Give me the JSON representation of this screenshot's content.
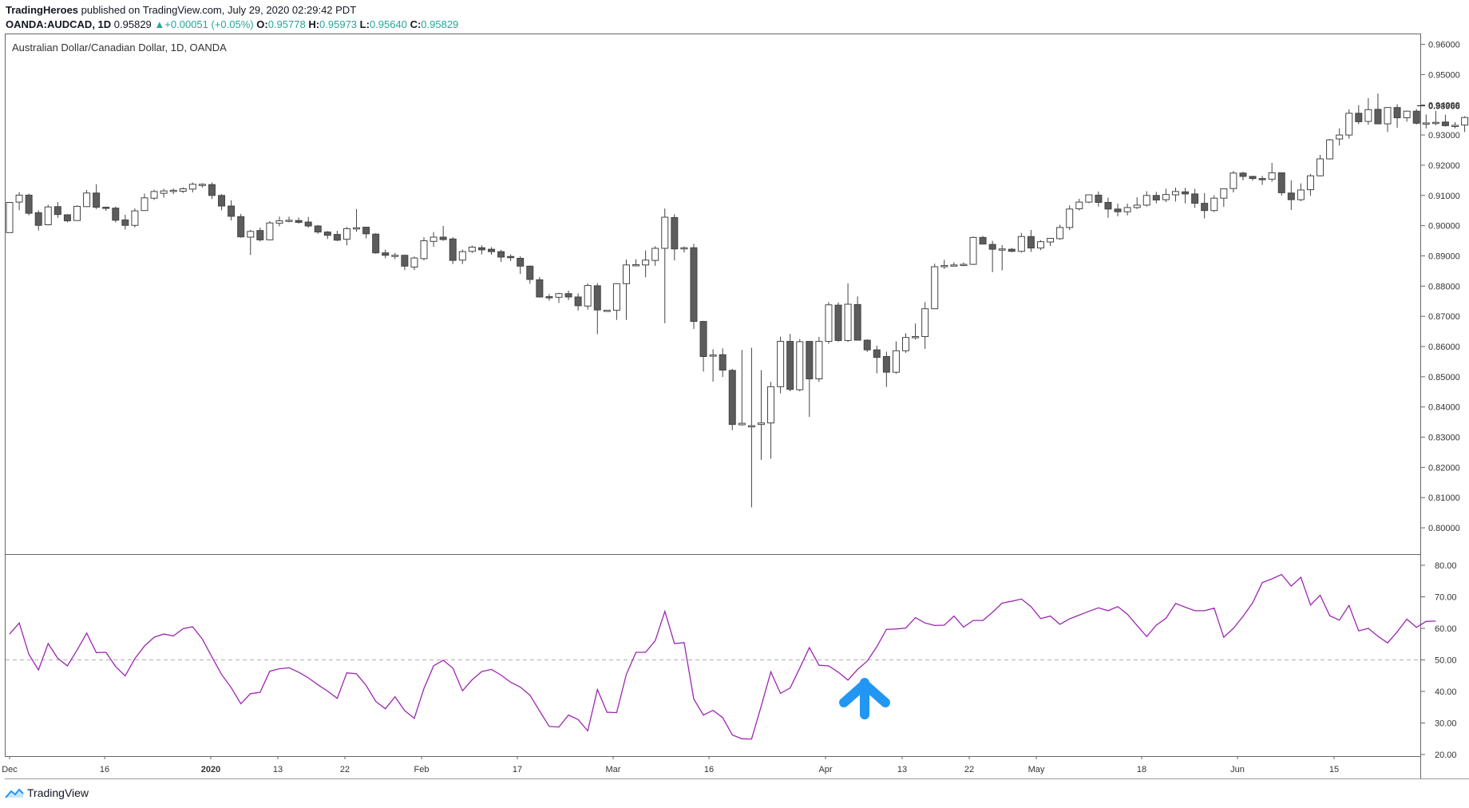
{
  "header": {
    "publisher": "TradingHeroes",
    "published_text": "published on TradingView.com, July 29, 2020 02:29:42 PDT",
    "symbol": "OANDA:AUDCAD, 1D",
    "last": "0.95829",
    "change": "+0.00051 (+0.05%)",
    "o_label": "O:",
    "o": "0.95778",
    "h_label": "H:",
    "h": "0.95973",
    "l_label": "L:",
    "l": "0.95640",
    "c_label": "C:",
    "c": "0.95829",
    "up_color": "#26a69a"
  },
  "footer": {
    "brand": "TradingView",
    "logo_icon": "tradingview-logo-icon"
  },
  "chart_data": [
    {
      "type": "candlestick",
      "title": "Australian Dollar/Canadian Dollar, 1D, OANDA",
      "ylim": [
        0.795,
        0.962
      ],
      "yticks": [
        "0.96000",
        "0.95000",
        "0.94000",
        "0.93000",
        "0.92000",
        "0.91000",
        "0.90000",
        "0.89000",
        "0.88000",
        "0.87000",
        "0.86000",
        "0.85000",
        "0.84000",
        "0.83000",
        "0.82000",
        "0.81000",
        "0.80000"
      ],
      "price_marker": "0.93966",
      "xticks": [
        "Dec",
        "16",
        "2020",
        "13",
        "22",
        "Feb",
        "17",
        "Mar",
        "16",
        "Apr",
        "13",
        "22",
        "May",
        "18",
        "Jun",
        "15"
      ],
      "colors": {
        "up_body": "#ffffff",
        "down_body": "#5c5c5c",
        "wick": "#444444"
      },
      "ohlc": [
        [
          0.8977,
          0.9077,
          0.8977,
          0.9077
        ],
        [
          0.9078,
          0.9111,
          0.9051,
          0.9101
        ],
        [
          0.9101,
          0.9106,
          0.9034,
          0.9041
        ],
        [
          0.9043,
          0.9051,
          0.8984,
          0.9001
        ],
        [
          0.9003,
          0.9069,
          0.9001,
          0.9062
        ],
        [
          0.9063,
          0.9078,
          0.9026,
          0.9037
        ],
        [
          0.9036,
          0.9038,
          0.9011,
          0.9016
        ],
        [
          0.9017,
          0.9067,
          0.9017,
          0.9064
        ],
        [
          0.9063,
          0.9118,
          0.9062,
          0.9108
        ],
        [
          0.9108,
          0.9137,
          0.9055,
          0.9061
        ],
        [
          0.9061,
          0.9063,
          0.9049,
          0.9058
        ],
        [
          0.9058,
          0.9063,
          0.9011,
          0.9018
        ],
        [
          0.9019,
          0.9036,
          0.8987,
          0.9001
        ],
        [
          0.9001,
          0.9057,
          0.8994,
          0.9049
        ],
        [
          0.905,
          0.9106,
          0.9049,
          0.9092
        ],
        [
          0.9091,
          0.9119,
          0.9085,
          0.9113
        ],
        [
          0.9107,
          0.9122,
          0.9093,
          0.9115
        ],
        [
          0.9113,
          0.9123,
          0.9104,
          0.9117
        ],
        [
          0.9114,
          0.9127,
          0.9108,
          0.9122
        ],
        [
          0.9121,
          0.9143,
          0.911,
          0.9137
        ],
        [
          0.9134,
          0.914,
          0.9126,
          0.9137
        ],
        [
          0.9136,
          0.9143,
          0.9088,
          0.91
        ],
        [
          0.91,
          0.9104,
          0.9051,
          0.9065
        ],
        [
          0.9065,
          0.9084,
          0.9017,
          0.9031
        ],
        [
          0.903,
          0.9039,
          0.896,
          0.8963
        ],
        [
          0.8962,
          0.8986,
          0.8903,
          0.8981
        ],
        [
          0.8984,
          0.8994,
          0.8948,
          0.8953
        ],
        [
          0.8953,
          0.9015,
          0.8953,
          0.9009
        ],
        [
          0.9008,
          0.903,
          0.8998,
          0.9016
        ],
        [
          0.9017,
          0.903,
          0.9011,
          0.9018
        ],
        [
          0.9017,
          0.9027,
          0.9007,
          0.9011
        ],
        [
          0.9012,
          0.9029,
          0.8993,
          0.8999
        ],
        [
          0.8999,
          0.9002,
          0.8973,
          0.8979
        ],
        [
          0.8979,
          0.8982,
          0.8956,
          0.8968
        ],
        [
          0.8971,
          0.8983,
          0.8949,
          0.8952
        ],
        [
          0.8955,
          0.8996,
          0.8935,
          0.899
        ],
        [
          0.899,
          0.9055,
          0.898,
          0.8993
        ],
        [
          0.8995,
          0.8996,
          0.8958,
          0.8973
        ],
        [
          0.8972,
          0.8975,
          0.8907,
          0.891
        ],
        [
          0.891,
          0.8921,
          0.8892,
          0.8902
        ],
        [
          0.8902,
          0.891,
          0.8889,
          0.8902
        ],
        [
          0.8902,
          0.8904,
          0.8853,
          0.8866
        ],
        [
          0.8863,
          0.8898,
          0.8853,
          0.8893
        ],
        [
          0.8891,
          0.8962,
          0.8885,
          0.895
        ],
        [
          0.8948,
          0.8979,
          0.893,
          0.8962
        ],
        [
          0.8962,
          0.8999,
          0.895,
          0.8954
        ],
        [
          0.8956,
          0.8962,
          0.8873,
          0.8885
        ],
        [
          0.8886,
          0.8921,
          0.8873,
          0.8914
        ],
        [
          0.8915,
          0.8934,
          0.891,
          0.8929
        ],
        [
          0.8927,
          0.8935,
          0.8905,
          0.892
        ],
        [
          0.8922,
          0.8929,
          0.8904,
          0.8914
        ],
        [
          0.8914,
          0.892,
          0.888,
          0.8896
        ],
        [
          0.8898,
          0.8905,
          0.8883,
          0.8894
        ],
        [
          0.8892,
          0.8899,
          0.884,
          0.8866
        ],
        [
          0.8866,
          0.8868,
          0.8808,
          0.8822
        ],
        [
          0.8821,
          0.883,
          0.8762,
          0.8764
        ],
        [
          0.8765,
          0.8774,
          0.8752,
          0.8763
        ],
        [
          0.8763,
          0.8778,
          0.8744,
          0.8775
        ],
        [
          0.8775,
          0.8785,
          0.8754,
          0.8764
        ],
        [
          0.8764,
          0.8776,
          0.8719,
          0.8735
        ],
        [
          0.8734,
          0.8809,
          0.8722,
          0.8802
        ],
        [
          0.8801,
          0.881,
          0.8641,
          0.8721
        ],
        [
          0.872,
          0.872,
          0.8718,
          0.872
        ],
        [
          0.872,
          0.881,
          0.8688,
          0.8808
        ],
        [
          0.8808,
          0.8888,
          0.8688,
          0.887
        ],
        [
          0.887,
          0.8889,
          0.8865,
          0.8871
        ],
        [
          0.887,
          0.8918,
          0.8829,
          0.8886
        ],
        [
          0.8885,
          0.8932,
          0.8867,
          0.8925
        ],
        [
          0.8925,
          0.9057,
          0.8677,
          0.9028
        ],
        [
          0.9027,
          0.9038,
          0.8885,
          0.8923
        ],
        [
          0.8924,
          0.8931,
          0.8911,
          0.8927
        ],
        [
          0.8927,
          0.894,
          0.8658,
          0.8683
        ],
        [
          0.8683,
          0.8685,
          0.8517,
          0.8567
        ],
        [
          0.8568,
          0.8591,
          0.8484,
          0.8572
        ],
        [
          0.8573,
          0.8594,
          0.8499,
          0.8522
        ],
        [
          0.8521,
          0.8526,
          0.8323,
          0.8342
        ],
        [
          0.8341,
          0.8589,
          0.8338,
          0.8346
        ],
        [
          0.8338,
          0.8596,
          0.8068,
          0.8338
        ],
        [
          0.8342,
          0.8522,
          0.8225,
          0.8347
        ],
        [
          0.8347,
          0.8483,
          0.8229,
          0.8467
        ],
        [
          0.8467,
          0.8633,
          0.8445,
          0.8617
        ],
        [
          0.8617,
          0.8642,
          0.8452,
          0.8458
        ],
        [
          0.8457,
          0.8625,
          0.8452,
          0.8616
        ],
        [
          0.8617,
          0.8616,
          0.8367,
          0.8493
        ],
        [
          0.8493,
          0.8632,
          0.8483,
          0.8617
        ],
        [
          0.8617,
          0.8747,
          0.8609,
          0.8738
        ],
        [
          0.8737,
          0.8746,
          0.8616,
          0.862
        ],
        [
          0.862,
          0.8809,
          0.8615,
          0.874
        ],
        [
          0.8739,
          0.8766,
          0.8621,
          0.8621
        ],
        [
          0.8621,
          0.8624,
          0.8582,
          0.8589
        ],
        [
          0.8589,
          0.8603,
          0.8511,
          0.8564
        ],
        [
          0.8567,
          0.8583,
          0.8466,
          0.8515
        ],
        [
          0.8515,
          0.8617,
          0.851,
          0.8586
        ],
        [
          0.8586,
          0.8644,
          0.8579,
          0.863
        ],
        [
          0.863,
          0.8676,
          0.8623,
          0.8633
        ],
        [
          0.8633,
          0.8747,
          0.8592,
          0.8725
        ],
        [
          0.8725,
          0.8874,
          0.8727,
          0.8864
        ],
        [
          0.8864,
          0.8887,
          0.8857,
          0.8868
        ],
        [
          0.8869,
          0.8879,
          0.8867,
          0.887
        ],
        [
          0.8871,
          0.8878,
          0.8866,
          0.8872
        ],
        [
          0.8872,
          0.8964,
          0.887,
          0.8961
        ],
        [
          0.8961,
          0.8966,
          0.894,
          0.8939
        ],
        [
          0.8938,
          0.895,
          0.8846,
          0.8922
        ],
        [
          0.8921,
          0.8936,
          0.8852,
          0.8923
        ],
        [
          0.8922,
          0.8926,
          0.8912,
          0.8915
        ],
        [
          0.8915,
          0.8976,
          0.8911,
          0.8964
        ],
        [
          0.8964,
          0.8986,
          0.8913,
          0.8926
        ],
        [
          0.8926,
          0.8952,
          0.8919,
          0.8947
        ],
        [
          0.8946,
          0.8953,
          0.8933,
          0.8958
        ],
        [
          0.8957,
          0.9003,
          0.8953,
          0.8994
        ],
        [
          0.8994,
          0.9067,
          0.8986,
          0.9055
        ],
        [
          0.9056,
          0.9089,
          0.905,
          0.9078
        ],
        [
          0.9078,
          0.9103,
          0.9075,
          0.9102
        ],
        [
          0.9101,
          0.9113,
          0.9063,
          0.9077
        ],
        [
          0.9077,
          0.9093,
          0.9026,
          0.9055
        ],
        [
          0.9055,
          0.9073,
          0.9031,
          0.9046
        ],
        [
          0.9046,
          0.9073,
          0.9034,
          0.906
        ],
        [
          0.906,
          0.9094,
          0.9055,
          0.9068
        ],
        [
          0.9068,
          0.9114,
          0.9063,
          0.91
        ],
        [
          0.91,
          0.9112,
          0.9074,
          0.9085
        ],
        [
          0.9086,
          0.9122,
          0.9078,
          0.9103
        ],
        [
          0.9102,
          0.9126,
          0.908,
          0.9113
        ],
        [
          0.9112,
          0.9125,
          0.9074,
          0.9105
        ],
        [
          0.9105,
          0.9122,
          0.9059,
          0.9074
        ],
        [
          0.9074,
          0.9108,
          0.9024,
          0.905
        ],
        [
          0.905,
          0.9101,
          0.9045,
          0.9091
        ],
        [
          0.9091,
          0.9122,
          0.9062,
          0.9122
        ],
        [
          0.9123,
          0.9181,
          0.911,
          0.9174
        ],
        [
          0.9174,
          0.9178,
          0.915,
          0.9163
        ],
        [
          0.9163,
          0.9165,
          0.9149,
          0.9156
        ],
        [
          0.9156,
          0.9165,
          0.9135,
          0.9154
        ],
        [
          0.9154,
          0.9208,
          0.9145,
          0.9175
        ],
        [
          0.9175,
          0.9174,
          0.9099,
          0.9109
        ],
        [
          0.9108,
          0.915,
          0.9052,
          0.9086
        ],
        [
          0.9086,
          0.914,
          0.9081,
          0.9118
        ],
        [
          0.9119,
          0.9171,
          0.9099,
          0.9165
        ],
        [
          0.9165,
          0.9234,
          0.9163,
          0.9221
        ],
        [
          0.9221,
          0.9287,
          0.9219,
          0.9284
        ],
        [
          0.9287,
          0.9322,
          0.9265,
          0.93
        ],
        [
          0.93,
          0.9385,
          0.9288,
          0.9372
        ],
        [
          0.9372,
          0.9399,
          0.9336,
          0.9344
        ],
        [
          0.9345,
          0.9422,
          0.9334,
          0.9384
        ],
        [
          0.9385,
          0.9437,
          0.9337,
          0.9337
        ],
        [
          0.9337,
          0.9388,
          0.931,
          0.9391
        ],
        [
          0.9391,
          0.9402,
          0.9324,
          0.9357
        ],
        [
          0.9357,
          0.9381,
          0.9344,
          0.9379
        ],
        [
          0.9379,
          0.9386,
          0.9335,
          0.9339
        ],
        [
          0.9339,
          0.9368,
          0.9322,
          0.934
        ],
        [
          0.934,
          0.938,
          0.9332,
          0.9342
        ],
        [
          0.9343,
          0.9367,
          0.9328,
          0.9331
        ],
        [
          0.933,
          0.9343,
          0.9322,
          0.9332
        ],
        [
          0.9333,
          0.9362,
          0.931,
          0.9358
        ],
        [
          0.9358,
          0.9419,
          0.9351,
          0.9398
        ],
        [
          0.9398,
          0.942,
          0.9385,
          0.9381
        ],
        [
          0.9381,
          0.9401,
          0.9369,
          0.9397
        ]
      ]
    },
    {
      "type": "line",
      "title": "",
      "ylim": [
        20,
        80
      ],
      "yticks": [
        "80.00",
        "70.00",
        "60.00",
        "50.00",
        "40.00",
        "30.00",
        "20.00"
      ],
      "reference_line": 50,
      "line_color": "#9c27b0",
      "values": [
        58.2,
        61.7,
        51.8,
        46.8,
        55.2,
        50.5,
        48.1,
        53.1,
        58.5,
        52.3,
        52.4,
        47.9,
        44.9,
        50.4,
        54.4,
        57.2,
        58.2,
        57.6,
        59.9,
        60.5,
        56.6,
        50.9,
        45.4,
        41.2,
        36.1,
        39.3,
        39.7,
        46.4,
        47.2,
        47.5,
        46.1,
        44.3,
        42.1,
        40.1,
        37.8,
        45.9,
        45.6,
        41.9,
        36.8,
        34.5,
        38.3,
        33.9,
        31.5,
        40.9,
        48.1,
        49.9,
        47.4,
        40.2,
        43.7,
        46.3,
        47.0,
        45.2,
        42.9,
        41.4,
        38.8,
        33.8,
        28.9,
        28.7,
        32.5,
        31.1,
        27.5,
        40.6,
        33.4,
        33.3,
        45.4,
        52.4,
        52.4,
        56.1,
        65.4,
        55.2,
        55.5,
        37.6,
        32.5,
        34.0,
        31.7,
        26.2,
        25.0,
        24.9,
        35.4,
        46.2,
        39.4,
        41.1,
        47.4,
        53.9,
        48.3,
        48.1,
        46.1,
        43.6,
        47.0,
        49.6,
        54.2,
        59.7,
        59.8,
        60.1,
        63.4,
        61.7,
        60.9,
        61.0,
        63.9,
        60.4,
        62.5,
        62.5,
        65.1,
        68.0,
        68.6,
        69.3,
        66.9,
        63.1,
        63.9,
        61.3,
        63.0,
        64.2,
        65.4,
        66.5,
        65.6,
        66.9,
        64.5,
        60.9,
        57.4,
        61.0,
        63.2,
        67.9,
        66.7,
        65.6,
        65.6,
        66.4,
        57.2,
        60.0,
        63.8,
        68.1,
        74.5,
        75.7,
        77.1,
        73.4,
        76.2,
        67.4,
        70.5,
        64.0,
        62.6,
        67.3,
        59.2,
        60.0,
        57.5,
        55.4,
        58.9,
        62.9,
        60.3,
        62.2,
        62.3
      ]
    }
  ],
  "annotation": {
    "arrow_color": "#2196f3",
    "arrow_icon": "up-arrow-icon"
  }
}
